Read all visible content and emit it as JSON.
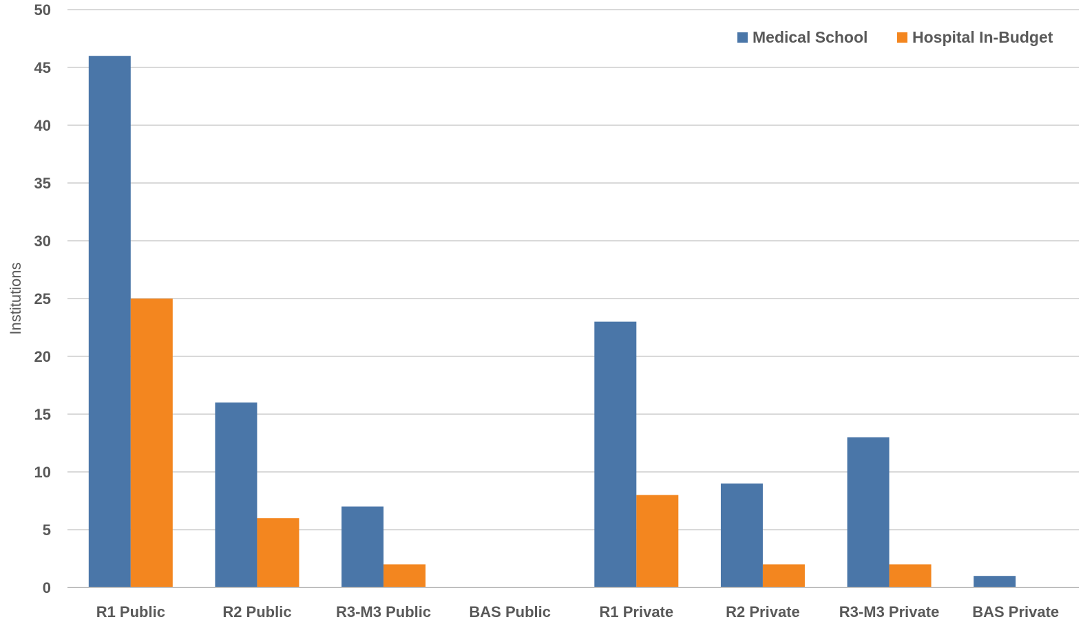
{
  "chart_data": {
    "type": "bar",
    "title": "",
    "xlabel": "",
    "ylabel": "Institutions",
    "ylim": [
      0,
      50
    ],
    "yticks": [
      0,
      5,
      10,
      15,
      20,
      25,
      30,
      35,
      40,
      45,
      50
    ],
    "grid": true,
    "legend_position": "top-right",
    "categories": [
      "R1 Public",
      "R2 Public",
      "R3-M3 Public",
      "BAS Public",
      "R1 Private",
      "R2 Private",
      "R3-M3 Private",
      "BAS Private"
    ],
    "series": [
      {
        "name": "Medical School",
        "color": "#4a76a8",
        "values": [
          46,
          16,
          7,
          0,
          23,
          9,
          13,
          1
        ]
      },
      {
        "name": "Hospital In-Budget",
        "color": "#f3861f",
        "values": [
          25,
          6,
          2,
          0,
          8,
          2,
          2,
          0
        ]
      }
    ],
    "colors": {
      "grid": "#d9d9d9",
      "axis": "#bfbfbf",
      "text": "#595959"
    }
  }
}
